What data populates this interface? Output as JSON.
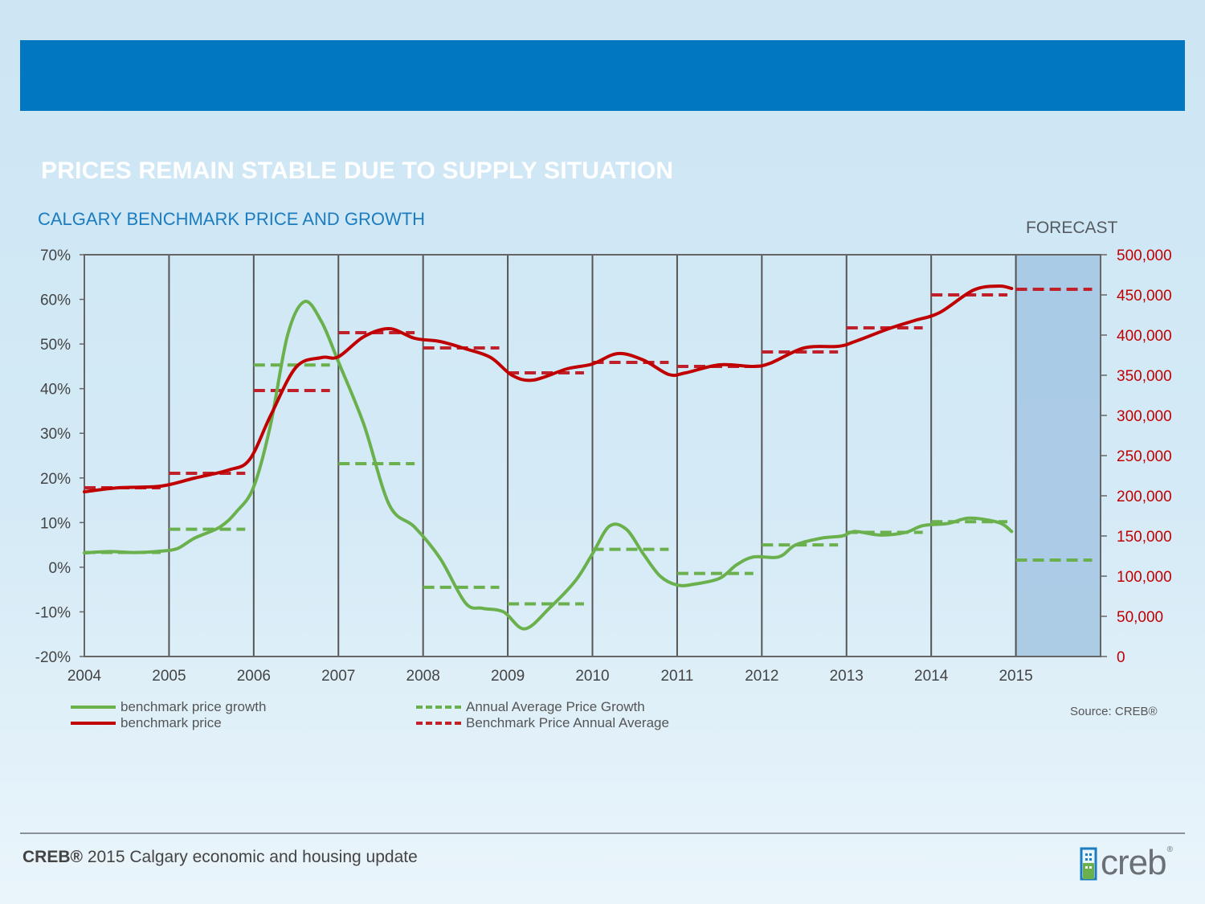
{
  "slide": {
    "title": "PRICES REMAIN STABLE DUE TO SUPPLY SITUATION",
    "forecast_label": "FORECAST",
    "source": "Source: CREB®",
    "footer_brand": "CREB®",
    "footer_rest": " 2015 Calgary economic and housing update",
    "logo_text": "creb",
    "logo_reg": "®"
  },
  "colors": {
    "header_bar": "#0077c0",
    "growth": "#6ab04c",
    "price": "#c00000",
    "growth_avg": "#6ab04c",
    "price_avg": "#c0202a",
    "forecast_band": "#a3c5e3"
  },
  "chart_data": {
    "type": "line",
    "title": "CALGARY BENCHMARK PRICE AND GROWTH",
    "x_ticks": [
      "2004",
      "2005",
      "2006",
      "2007",
      "2008",
      "2009",
      "2010",
      "2011",
      "2012",
      "2013",
      "2014",
      "2015"
    ],
    "xlim": [
      2004,
      2016
    ],
    "y_left": {
      "ticks": [
        "70%",
        "60%",
        "50%",
        "40%",
        "30%",
        "20%",
        "10%",
        "0%",
        "-10%",
        "-20%"
      ],
      "range": [
        -20,
        70
      ],
      "unit": "%"
    },
    "y_right": {
      "ticks": [
        "500,000",
        "450,000",
        "400,000",
        "350,000",
        "300,000",
        "250,000",
        "200,000",
        "150,000",
        "100,000",
        "50,000",
        "0"
      ],
      "range": [
        0,
        500000
      ]
    },
    "forecast_range": [
      2015,
      2016
    ],
    "legend": [
      {
        "label": "benchmark price growth",
        "style": "solid",
        "color": "#6ab04c"
      },
      {
        "label": "Annual Average Price Growth",
        "style": "dashed",
        "color": "#6ab04c"
      },
      {
        "label": "benchmark price",
        "style": "solid",
        "color": "#c00000"
      },
      {
        "label": "Benchmark Price Annual Average",
        "style": "dashed",
        "color": "#c0202a"
      }
    ],
    "series": [
      {
        "name": "benchmark price growth",
        "axis": "left",
        "points": [
          [
            2004.0,
            3.2
          ],
          [
            2004.3,
            3.5
          ],
          [
            2004.6,
            3.3
          ],
          [
            2004.9,
            3.6
          ],
          [
            2005.1,
            4.2
          ],
          [
            2005.3,
            6.5
          ],
          [
            2005.6,
            9.0
          ],
          [
            2005.8,
            12.5
          ],
          [
            2006.0,
            18.0
          ],
          [
            2006.2,
            32.0
          ],
          [
            2006.4,
            52.0
          ],
          [
            2006.6,
            59.5
          ],
          [
            2006.8,
            55.0
          ],
          [
            2007.0,
            46.0
          ],
          [
            2007.3,
            32.0
          ],
          [
            2007.6,
            14.0
          ],
          [
            2007.9,
            9.0
          ],
          [
            2008.2,
            2.0
          ],
          [
            2008.5,
            -8.0
          ],
          [
            2008.7,
            -9.2
          ],
          [
            2008.95,
            -10.0
          ],
          [
            2009.2,
            -13.8
          ],
          [
            2009.5,
            -9.0
          ],
          [
            2009.8,
            -3.0
          ],
          [
            2010.0,
            3.0
          ],
          [
            2010.2,
            9.2
          ],
          [
            2010.4,
            8.5
          ],
          [
            2010.6,
            3.0
          ],
          [
            2010.8,
            -2.0
          ],
          [
            2011.0,
            -4.0
          ],
          [
            2011.2,
            -3.8
          ],
          [
            2011.5,
            -2.5
          ],
          [
            2011.7,
            0.5
          ],
          [
            2011.9,
            2.3
          ],
          [
            2012.2,
            2.3
          ],
          [
            2012.4,
            5.0
          ],
          [
            2012.7,
            6.5
          ],
          [
            2012.95,
            7.0
          ],
          [
            2013.1,
            8.0
          ],
          [
            2013.4,
            7.2
          ],
          [
            2013.7,
            7.8
          ],
          [
            2013.9,
            9.3
          ],
          [
            2014.2,
            9.8
          ],
          [
            2014.45,
            11.0
          ],
          [
            2014.8,
            10.0
          ],
          [
            2014.95,
            8.0
          ]
        ]
      },
      {
        "name": "benchmark price",
        "axis": "right",
        "points": [
          [
            2004.0,
            205000
          ],
          [
            2004.4,
            210000
          ],
          [
            2004.9,
            212000
          ],
          [
            2005.3,
            222000
          ],
          [
            2005.7,
            232000
          ],
          [
            2005.95,
            245000
          ],
          [
            2006.2,
            300000
          ],
          [
            2006.5,
            360000
          ],
          [
            2006.8,
            372000
          ],
          [
            2007.0,
            373000
          ],
          [
            2007.3,
            398000
          ],
          [
            2007.6,
            408000
          ],
          [
            2007.9,
            396000
          ],
          [
            2008.2,
            392000
          ],
          [
            2008.5,
            383000
          ],
          [
            2008.8,
            372000
          ],
          [
            2009.05,
            350000
          ],
          [
            2009.3,
            344000
          ],
          [
            2009.7,
            358000
          ],
          [
            2010.0,
            364000
          ],
          [
            2010.3,
            377000
          ],
          [
            2010.6,
            369000
          ],
          [
            2010.9,
            351000
          ],
          [
            2011.1,
            353000
          ],
          [
            2011.5,
            363000
          ],
          [
            2011.9,
            361000
          ],
          [
            2012.1,
            365000
          ],
          [
            2012.5,
            384000
          ],
          [
            2012.9,
            386000
          ],
          [
            2013.1,
            392000
          ],
          [
            2013.5,
            408000
          ],
          [
            2013.8,
            418000
          ],
          [
            2014.1,
            428000
          ],
          [
            2014.5,
            456000
          ],
          [
            2014.8,
            461000
          ],
          [
            2014.95,
            458000
          ]
        ]
      },
      {
        "name": "Annual Average Price Growth",
        "axis": "left",
        "segments": [
          [
            2004.0,
            2004.9,
            3.3
          ],
          [
            2005.0,
            2005.9,
            8.5
          ],
          [
            2006.0,
            2006.9,
            45.3
          ],
          [
            2007.0,
            2007.9,
            23.2
          ],
          [
            2008.0,
            2008.9,
            -4.5
          ],
          [
            2009.0,
            2009.9,
            -8.2
          ],
          [
            2010.0,
            2010.9,
            4.0
          ],
          [
            2011.0,
            2011.9,
            -1.4
          ],
          [
            2012.0,
            2012.9,
            5.0
          ],
          [
            2013.0,
            2013.9,
            7.8
          ],
          [
            2014.0,
            2014.9,
            10.2
          ],
          [
            2015.0,
            2015.9,
            1.6
          ]
        ]
      },
      {
        "name": "Benchmark Price Annual Average",
        "axis": "right",
        "segments": [
          [
            2004.0,
            2004.9,
            210000
          ],
          [
            2005.0,
            2005.9,
            228000
          ],
          [
            2006.0,
            2006.9,
            331000
          ],
          [
            2007.0,
            2007.9,
            403000
          ],
          [
            2008.0,
            2008.9,
            384000
          ],
          [
            2009.0,
            2009.9,
            353000
          ],
          [
            2010.0,
            2010.9,
            366000
          ],
          [
            2011.0,
            2011.9,
            361000
          ],
          [
            2012.0,
            2012.9,
            379000
          ],
          [
            2013.0,
            2013.9,
            409000
          ],
          [
            2014.0,
            2014.9,
            450000
          ],
          [
            2015.0,
            2015.9,
            457000
          ]
        ]
      }
    ]
  }
}
